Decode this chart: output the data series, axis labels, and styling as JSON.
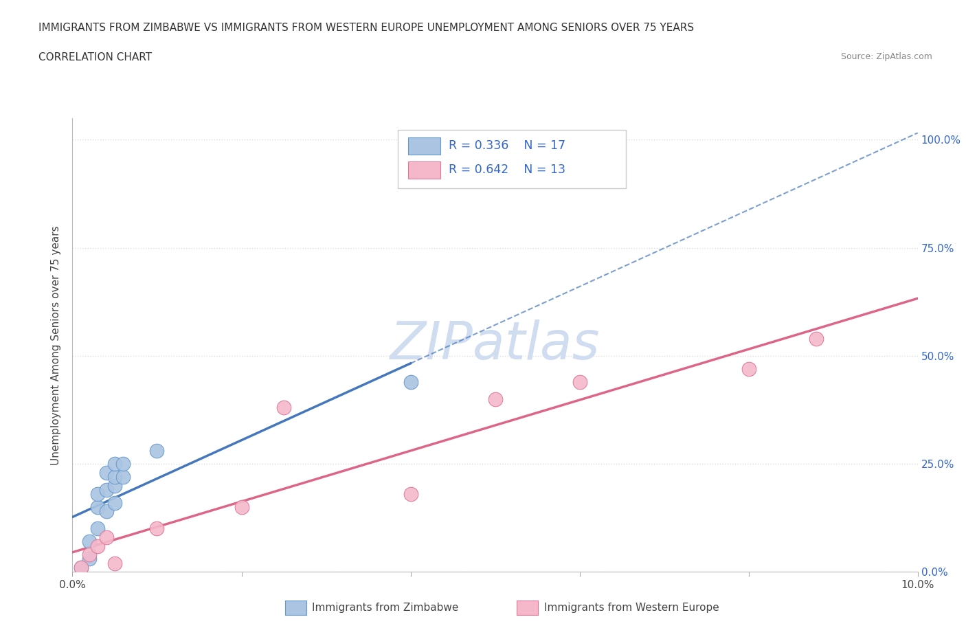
{
  "title_line1": "IMMIGRANTS FROM ZIMBABWE VS IMMIGRANTS FROM WESTERN EUROPE UNEMPLOYMENT AMONG SENIORS OVER 75 YEARS",
  "title_line2": "CORRELATION CHART",
  "source": "Source: ZipAtlas.com",
  "ylabel": "Unemployment Among Seniors over 75 years",
  "xlim": [
    0,
    0.1
  ],
  "ylim": [
    0,
    1.05
  ],
  "xtick_positions": [
    0.0,
    0.02,
    0.04,
    0.06,
    0.08,
    0.1
  ],
  "xticklabels": [
    "0.0%",
    "",
    "",
    "",
    "",
    "10.0%"
  ],
  "ytick_positions": [
    0.0,
    0.25,
    0.5,
    0.75,
    1.0
  ],
  "yticklabels": [
    "0.0%",
    "25.0%",
    "50.0%",
    "75.0%",
    "100.0%"
  ],
  "zimbabwe_color": "#aac4e2",
  "zimbabwe_edge": "#6699cc",
  "zimbabwe_line_color": "#4477bb",
  "western_europe_color": "#f5b8cb",
  "western_europe_edge": "#dd7799",
  "western_europe_line_color": "#dd6688",
  "R_zimbabwe": 0.336,
  "N_zimbabwe": 17,
  "R_western_europe": 0.642,
  "N_western_europe": 13,
  "legend_text_color": "#3366cc",
  "watermark_text": "ZIPatlas",
  "watermark_color": "#d0ddf0",
  "background_color": "#ffffff",
  "grid_color": "#dddddd",
  "zimbabwe_x": [
    0.001,
    0.002,
    0.002,
    0.003,
    0.003,
    0.003,
    0.004,
    0.004,
    0.004,
    0.005,
    0.005,
    0.005,
    0.005,
    0.006,
    0.006,
    0.01,
    0.04
  ],
  "zimbabwe_y": [
    0.01,
    0.03,
    0.07,
    0.1,
    0.15,
    0.18,
    0.14,
    0.19,
    0.23,
    0.16,
    0.2,
    0.22,
    0.25,
    0.22,
    0.25,
    0.28,
    0.44
  ],
  "western_europe_x": [
    0.001,
    0.002,
    0.003,
    0.004,
    0.005,
    0.01,
    0.02,
    0.025,
    0.04,
    0.05,
    0.06,
    0.08,
    0.088
  ],
  "western_europe_y": [
    0.01,
    0.04,
    0.06,
    0.08,
    0.02,
    0.1,
    0.15,
    0.38,
    0.18,
    0.4,
    0.44,
    0.47,
    0.54
  ],
  "zim_line_xstart": 0.0,
  "zim_line_xend": 0.04,
  "zim_dashed_xstart": 0.04,
  "zim_dashed_xend": 0.1,
  "we_line_xstart": 0.0,
  "we_line_xend": 0.1
}
